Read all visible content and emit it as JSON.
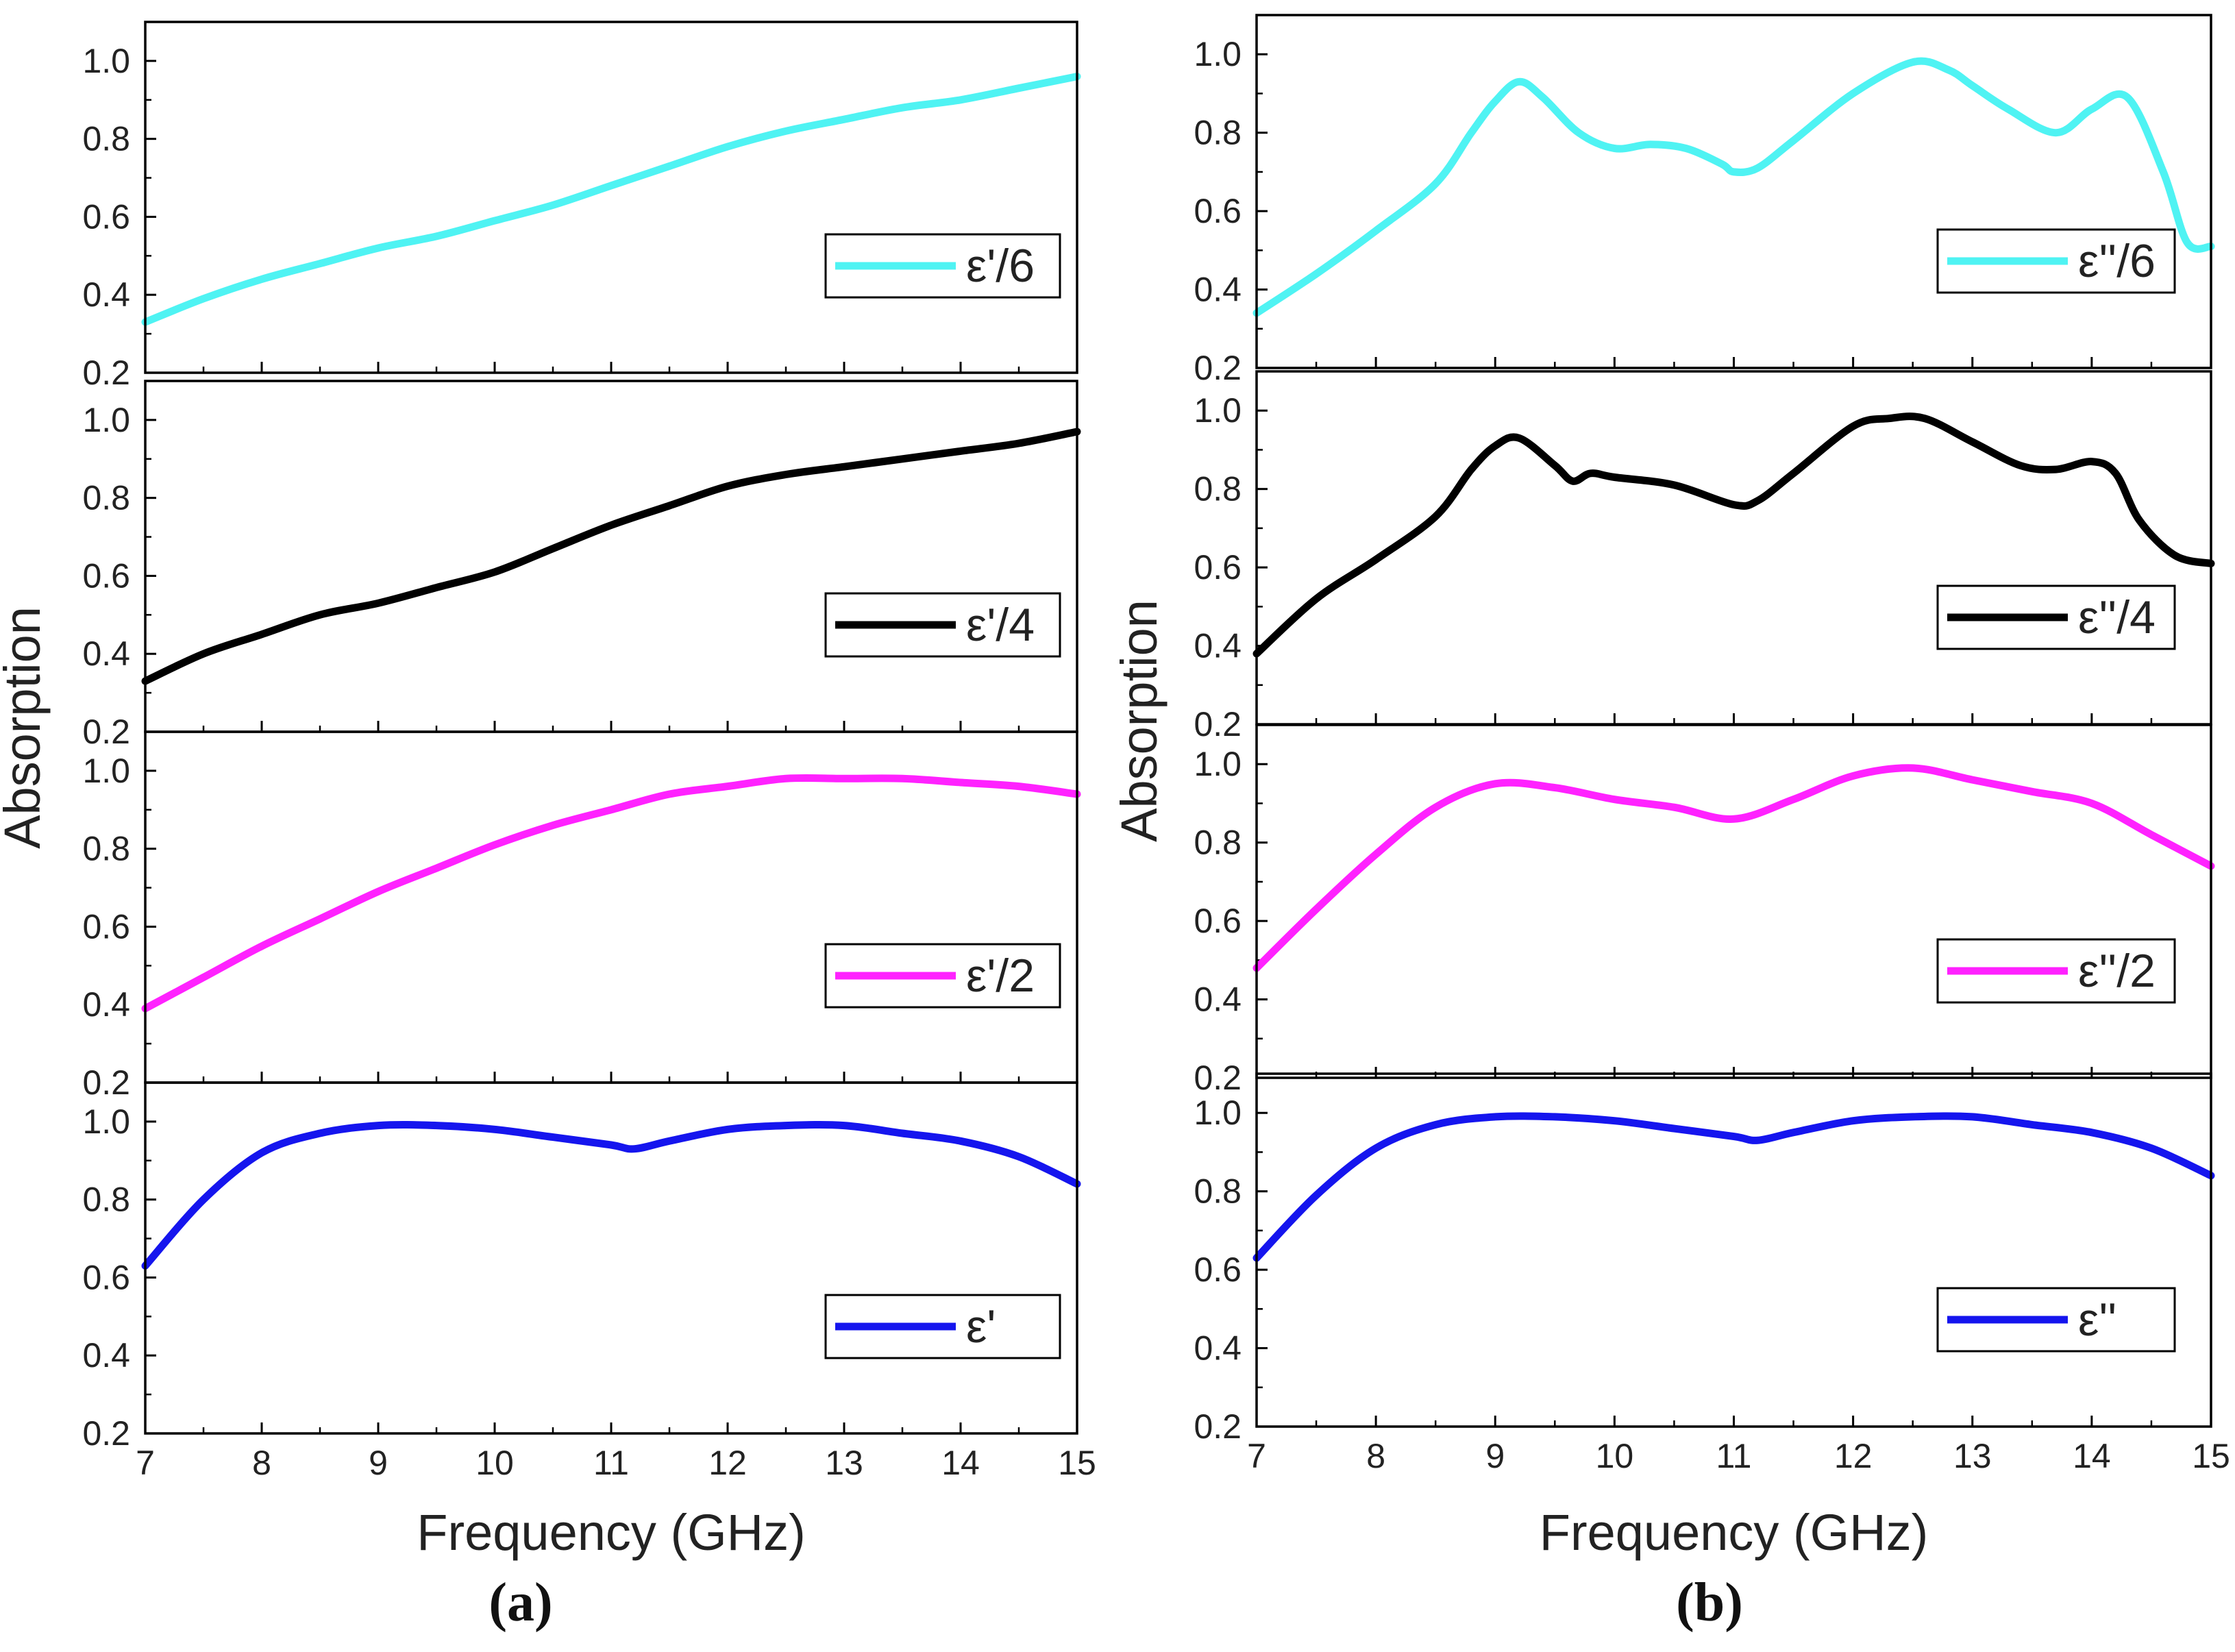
{
  "chart_data": [
    {
      "type": "line",
      "caption": "(a)",
      "xlabel": "Frequency (GHz)",
      "ylabel": "Absorption",
      "xlim": [
        7,
        15
      ],
      "xticks": [
        "7",
        "8",
        "9",
        "10",
        "11",
        "12",
        "13",
        "14",
        "15"
      ],
      "legend_position": "bottom-right of each subplot",
      "subplots": [
        {
          "ylim": [
            0.2,
            1.1
          ],
          "yticks": [
            "0.2",
            "0.4",
            "0.6",
            "0.8",
            "1.0"
          ],
          "series": [
            {
              "name": "ε'/6",
              "color": "#4ff3f3",
              "x": [
                7,
                7.5,
                8,
                8.5,
                9,
                9.5,
                10,
                10.5,
                11,
                11.5,
                12,
                12.5,
                13,
                13.5,
                14,
                14.5,
                15
              ],
              "y": [
                0.33,
                0.39,
                0.44,
                0.48,
                0.52,
                0.55,
                0.59,
                0.63,
                0.68,
                0.73,
                0.78,
                0.82,
                0.85,
                0.88,
                0.9,
                0.93,
                0.96
              ]
            }
          ]
        },
        {
          "ylim": [
            0.2,
            1.1
          ],
          "yticks": [
            "0.2",
            "0.4",
            "0.6",
            "0.8",
            "1.0"
          ],
          "series": [
            {
              "name": "ε'/4",
              "color": "#000000",
              "x": [
                7,
                7.5,
                8,
                8.5,
                9,
                9.5,
                10,
                10.5,
                11,
                11.5,
                12,
                12.5,
                13,
                13.5,
                14,
                14.5,
                15
              ],
              "y": [
                0.33,
                0.4,
                0.45,
                0.5,
                0.53,
                0.57,
                0.61,
                0.67,
                0.73,
                0.78,
                0.83,
                0.86,
                0.88,
                0.9,
                0.92,
                0.94,
                0.97
              ]
            }
          ]
        },
        {
          "ylim": [
            0.2,
            1.1
          ],
          "yticks": [
            "0.2",
            "0.4",
            "0.6",
            "0.8",
            "1.0"
          ],
          "series": [
            {
              "name": "ε'/2",
              "color": "#ff22ff",
              "x": [
                7,
                7.5,
                8,
                8.5,
                9,
                9.5,
                10,
                10.5,
                11,
                11.5,
                12,
                12.5,
                13,
                13.5,
                14,
                14.5,
                15
              ],
              "y": [
                0.39,
                0.47,
                0.55,
                0.62,
                0.69,
                0.75,
                0.81,
                0.86,
                0.9,
                0.94,
                0.96,
                0.98,
                0.98,
                0.98,
                0.97,
                0.96,
                0.94
              ]
            }
          ]
        },
        {
          "ylim": [
            0.2,
            1.1
          ],
          "yticks": [
            "0.2",
            "0.4",
            "0.6",
            "0.8",
            "1.0"
          ],
          "series": [
            {
              "name": "ε'",
              "color": "#1515ee",
              "x": [
                7,
                7.5,
                8,
                8.5,
                9,
                9.5,
                10,
                10.5,
                11,
                11.2,
                11.5,
                12,
                12.5,
                13,
                13.5,
                14,
                14.5,
                15
              ],
              "y": [
                0.63,
                0.8,
                0.92,
                0.97,
                0.99,
                0.99,
                0.98,
                0.96,
                0.94,
                0.93,
                0.95,
                0.98,
                0.99,
                0.99,
                0.97,
                0.95,
                0.91,
                0.84
              ]
            }
          ]
        }
      ]
    },
    {
      "type": "line",
      "caption": "(b)",
      "xlabel": "Frequency (GHz)",
      "ylabel": "Absorption",
      "xlim": [
        7,
        15
      ],
      "xticks": [
        "7",
        "8",
        "9",
        "10",
        "11",
        "12",
        "13",
        "14",
        "15"
      ],
      "legend_position": "bottom-right of each subplot",
      "subplots": [
        {
          "ylim": [
            0.2,
            1.1
          ],
          "yticks": [
            "0.2",
            "0.4",
            "0.6",
            "0.8",
            "1.0"
          ],
          "series": [
            {
              "name": "ε''/6",
              "color": "#4ff3f3",
              "x": [
                7,
                7.5,
                8,
                8.5,
                8.8,
                9,
                9.2,
                9.4,
                9.7,
                10,
                10.3,
                10.6,
                10.9,
                11,
                11.2,
                11.5,
                12,
                12.5,
                12.8,
                13,
                13.3,
                13.7,
                14,
                14.3,
                14.6,
                14.8,
                15
              ],
              "y": [
                0.34,
                0.44,
                0.55,
                0.67,
                0.8,
                0.88,
                0.93,
                0.89,
                0.8,
                0.76,
                0.77,
                0.76,
                0.72,
                0.7,
                0.71,
                0.78,
                0.9,
                0.98,
                0.96,
                0.92,
                0.86,
                0.8,
                0.86,
                0.89,
                0.7,
                0.52,
                0.51
              ]
            }
          ]
        },
        {
          "ylim": [
            0.2,
            1.1
          ],
          "yticks": [
            "0.2",
            "0.4",
            "0.6",
            "0.8",
            "1.0"
          ],
          "series": [
            {
              "name": "ε''/4",
              "color": "#000000",
              "x": [
                7,
                7.5,
                8,
                8.5,
                8.8,
                9,
                9.2,
                9.5,
                9.65,
                9.8,
                10,
                10.5,
                11,
                11.2,
                11.5,
                12,
                12.3,
                12.6,
                13,
                13.4,
                13.7,
                14,
                14.2,
                14.4,
                14.7,
                15
              ],
              "y": [
                0.38,
                0.52,
                0.62,
                0.73,
                0.85,
                0.91,
                0.93,
                0.86,
                0.82,
                0.84,
                0.83,
                0.81,
                0.76,
                0.77,
                0.84,
                0.96,
                0.98,
                0.98,
                0.92,
                0.86,
                0.85,
                0.87,
                0.84,
                0.72,
                0.63,
                0.61
              ]
            }
          ]
        },
        {
          "ylim": [
            0.2,
            1.1
          ],
          "yticks": [
            "0.2",
            "0.4",
            "0.6",
            "0.8",
            "1.0"
          ],
          "series": [
            {
              "name": "ε''/2",
              "color": "#ff22ff",
              "x": [
                7,
                7.5,
                8,
                8.5,
                9,
                9.5,
                10,
                10.5,
                11,
                11.5,
                12,
                12.5,
                13,
                13.5,
                14,
                14.5,
                15
              ],
              "y": [
                0.48,
                0.63,
                0.77,
                0.89,
                0.95,
                0.94,
                0.91,
                0.89,
                0.86,
                0.91,
                0.97,
                0.99,
                0.96,
                0.93,
                0.9,
                0.82,
                0.74
              ]
            }
          ]
        },
        {
          "ylim": [
            0.2,
            1.1
          ],
          "yticks": [
            "0.2",
            "0.4",
            "0.6",
            "0.8",
            "1.0"
          ],
          "series": [
            {
              "name": "ε''",
              "color": "#1515ee",
              "x": [
                7,
                7.5,
                8,
                8.5,
                9,
                9.5,
                10,
                10.5,
                11,
                11.2,
                11.5,
                12,
                12.5,
                13,
                13.5,
                14,
                14.5,
                15
              ],
              "y": [
                0.63,
                0.79,
                0.91,
                0.97,
                0.99,
                0.99,
                0.98,
                0.96,
                0.94,
                0.93,
                0.95,
                0.98,
                0.99,
                0.99,
                0.97,
                0.95,
                0.91,
                0.84
              ]
            }
          ]
        }
      ]
    }
  ]
}
